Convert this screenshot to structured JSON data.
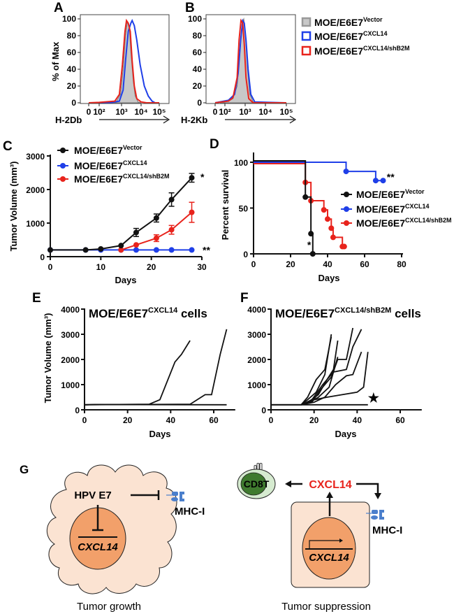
{
  "colors": {
    "vector": "#111111",
    "cxcl14": "#1f3fe8",
    "shb2m": "#e8231c",
    "vector_fill": "#c8c8c8",
    "cell": "#fbe3d2",
    "nucleus": "#f2a06a",
    "cd8_outer": "#d6ebd0",
    "cd8_inner": "#3f7a2f",
    "mhc": "#4b7fcc"
  },
  "legend": [
    {
      "base": "MOE/E6E7",
      "sup": "Vector"
    },
    {
      "base": "MOE/E6E7",
      "sup": "CXCL14"
    },
    {
      "base": "MOE/E6E7",
      "sup": "CXCL14/shB2M"
    }
  ],
  "chart_data": [
    {
      "panel": "A",
      "type": "area",
      "xlabel": "H-2Db",
      "ylabel": "% of Max",
      "xscale": "biexponential",
      "xticks": [
        {
          "value": 0,
          "label": "0"
        },
        {
          "value": 100,
          "label": "10²"
        },
        {
          "value": 1000,
          "label": "10³"
        },
        {
          "value": 10000,
          "label": "10⁴"
        },
        {
          "value": 100000,
          "label": "10⁵"
        }
      ],
      "yticks": [
        0,
        20,
        40,
        60,
        80,
        100
      ],
      "ylim": [
        0,
        105
      ],
      "series": [
        {
          "legend_index": 0,
          "style": "filled",
          "points": [
            [
              100,
              0
            ],
            [
              600,
              2
            ],
            [
              900,
              10
            ],
            [
              1200,
              40
            ],
            [
              1600,
              80
            ],
            [
              2000,
              97
            ],
            [
              2500,
              90
            ],
            [
              3000,
              60
            ],
            [
              4000,
              25
            ],
            [
              5000,
              8
            ],
            [
              7000,
              1
            ],
            [
              10000,
              0
            ]
          ]
        },
        {
          "legend_index": 1,
          "style": "line",
          "points": [
            [
              0,
              0
            ],
            [
              300,
              0
            ],
            [
              800,
              2
            ],
            [
              1200,
              15
            ],
            [
              1600,
              50
            ],
            [
              2200,
              85
            ],
            [
              3000,
              95
            ],
            [
              3500,
              98
            ],
            [
              4500,
              92
            ],
            [
              6000,
              75
            ],
            [
              9000,
              45
            ],
            [
              15000,
              20
            ],
            [
              25000,
              8
            ],
            [
              40000,
              2
            ],
            [
              60000,
              0
            ],
            [
              100000,
              0
            ]
          ]
        },
        {
          "legend_index": 2,
          "style": "line",
          "points": [
            [
              0,
              0
            ],
            [
              100,
              0.5
            ],
            [
              500,
              2
            ],
            [
              800,
              10
            ],
            [
              1100,
              45
            ],
            [
              1500,
              85
            ],
            [
              1800,
              98
            ],
            [
              2200,
              95
            ],
            [
              2800,
              85
            ],
            [
              3500,
              50
            ],
            [
              4500,
              20
            ],
            [
              6000,
              5
            ],
            [
              10000,
              1
            ],
            [
              20000,
              0
            ],
            [
              100000,
              0
            ]
          ]
        }
      ]
    },
    {
      "panel": "B",
      "type": "area",
      "xlabel": "H-2Kb",
      "ylabel": "",
      "xscale": "biexponential",
      "xticks": [
        {
          "value": 0,
          "label": "0"
        },
        {
          "value": 100,
          "label": "10²"
        },
        {
          "value": 1000,
          "label": "10³"
        },
        {
          "value": 10000,
          "label": "10⁴"
        },
        {
          "value": 100000,
          "label": "10⁵"
        }
      ],
      "yticks": [
        0,
        20,
        40,
        60,
        80,
        100
      ],
      "ylim": [
        0,
        105
      ],
      "series": [
        {
          "legend_index": 0,
          "style": "filled",
          "points": [
            [
              50,
              0
            ],
            [
              150,
              2
            ],
            [
              250,
              5
            ],
            [
              400,
              20
            ],
            [
              550,
              60
            ],
            [
              700,
              95
            ],
            [
              850,
              100
            ],
            [
              1000,
              85
            ],
            [
              1300,
              40
            ],
            [
              1700,
              10
            ],
            [
              2500,
              1
            ],
            [
              4000,
              0
            ]
          ]
        },
        {
          "legend_index": 1,
          "style": "line",
          "points": [
            [
              0,
              0
            ],
            [
              150,
              3
            ],
            [
              300,
              10
            ],
            [
              450,
              35
            ],
            [
              600,
              75
            ],
            [
              750,
              98
            ],
            [
              900,
              95
            ],
            [
              1100,
              75
            ],
            [
              1400,
              40
            ],
            [
              1900,
              10
            ],
            [
              3000,
              1
            ],
            [
              100000,
              0
            ]
          ]
        },
        {
          "legend_index": 2,
          "style": "line",
          "points": [
            [
              0,
              0
            ],
            [
              150,
              2
            ],
            [
              250,
              6
            ],
            [
              400,
              30
            ],
            [
              500,
              75
            ],
            [
              620,
              98
            ],
            [
              750,
              95
            ],
            [
              900,
              70
            ],
            [
              1100,
              30
            ],
            [
              1500,
              5
            ],
            [
              2500,
              0
            ],
            [
              100000,
              0
            ]
          ]
        }
      ]
    },
    {
      "panel": "C",
      "type": "line",
      "xlabel": "Days",
      "ylabel": "Tumor Volume (mm³)",
      "xlim": [
        0,
        30
      ],
      "ylim": [
        0,
        3000
      ],
      "xticks": [
        0,
        10,
        20,
        30
      ],
      "yticks": [
        0,
        1000,
        2000,
        3000
      ],
      "series": [
        {
          "legend_index": 0,
          "x": [
            0,
            7,
            10,
            14,
            17,
            21,
            24,
            28
          ],
          "y": [
            200,
            200,
            230,
            330,
            720,
            1150,
            1700,
            2350
          ],
          "err": [
            0,
            0,
            0,
            0,
            120,
            120,
            200,
            130
          ],
          "annotation": "*"
        },
        {
          "legend_index": 1,
          "x": [
            0,
            7,
            10,
            14,
            17,
            21,
            24,
            28
          ],
          "y": [
            200,
            200,
            200,
            200,
            200,
            200,
            200,
            200
          ],
          "err": [
            0,
            0,
            0,
            0,
            0,
            0,
            0,
            0
          ],
          "annotation": "**"
        },
        {
          "legend_index": 2,
          "x": [
            14,
            17,
            21,
            24,
            28
          ],
          "y": [
            200,
            350,
            550,
            800,
            1320
          ],
          "err": [
            0,
            0,
            100,
            130,
            300
          ],
          "annotation": ""
        }
      ]
    },
    {
      "panel": "D",
      "type": "line",
      "subtype": "survival-step",
      "xlabel": "Days",
      "ylabel": "Percent survival",
      "xlim": [
        0,
        80
      ],
      "ylim": [
        0,
        110
      ],
      "xticks": [
        0,
        20,
        40,
        60,
        80
      ],
      "yticks": [
        0,
        50,
        100
      ],
      "series": [
        {
          "legend_index": 0,
          "steps": [
            [
              0,
              100
            ],
            [
              28,
              62
            ],
            [
              31,
              22
            ],
            [
              32,
              0
            ]
          ],
          "end": 32,
          "annotation": "*",
          "annotation_at": [
            29,
            10
          ]
        },
        {
          "legend_index": 1,
          "steps": [
            [
              0,
              100
            ],
            [
              50,
              90
            ],
            [
              66,
              80
            ]
          ],
          "end": 70,
          "markers_at_end": true,
          "annotation": "**",
          "annotation_at": [
            72,
            84
          ]
        },
        {
          "legend_index": 2,
          "steps": [
            [
              0,
              100
            ],
            [
              28,
              78
            ],
            [
              31,
              58
            ],
            [
              38,
              48
            ],
            [
              40,
              38
            ],
            [
              42,
              28
            ],
            [
              43,
              18
            ],
            [
              48,
              8
            ]
          ],
          "end": 49,
          "markers_at_end": true,
          "annotation": ""
        }
      ]
    },
    {
      "panel": "E",
      "type": "line",
      "title_base": "MOE/E6E7",
      "title_sup": "CXCL14",
      "title_tail": " cells",
      "xlabel": "Days",
      "ylabel": "Tumor Volume (mm³)",
      "xlim": [
        0,
        70
      ],
      "ylim": [
        0,
        4000
      ],
      "xticks": [
        0,
        20,
        40,
        60
      ],
      "yticks": [
        0,
        1000,
        2000,
        3000,
        4000
      ],
      "series": [
        {
          "x": [
            0,
            30,
            35,
            42,
            45,
            49
          ],
          "y": [
            200,
            220,
            400,
            1900,
            2200,
            2750
          ]
        },
        {
          "x": [
            0,
            49,
            56,
            59,
            63,
            66
          ],
          "y": [
            200,
            220,
            600,
            600,
            2200,
            3200
          ]
        },
        {
          "x": [
            0,
            5,
            66
          ],
          "y": [
            200,
            210,
            200
          ]
        }
      ]
    },
    {
      "panel": "F",
      "type": "line",
      "title_base": "MOE/E6E7",
      "title_sup": "CXCL14/shB2M",
      "title_tail": " cells",
      "xlabel": "Days",
      "ylabel": "",
      "xlim": [
        0,
        70
      ],
      "ylim": [
        0,
        4000
      ],
      "xticks": [
        0,
        20,
        40,
        60
      ],
      "yticks": [
        0,
        1000,
        2000,
        3000,
        4000
      ],
      "marker_annotation": {
        "symbol": "★",
        "at": [
          45,
          500
        ]
      },
      "series": [
        {
          "x": [
            0,
            14,
            17,
            21,
            25,
            28
          ],
          "y": [
            200,
            200,
            500,
            1200,
            1600,
            2900
          ]
        },
        {
          "x": [
            14,
            17,
            21,
            25,
            28
          ],
          "y": [
            200,
            400,
            700,
            1400,
            3000
          ]
        },
        {
          "x": [
            14,
            18,
            22,
            27,
            31
          ],
          "y": [
            200,
            300,
            500,
            900,
            2100
          ]
        },
        {
          "x": [
            14,
            18,
            22,
            26,
            29,
            31
          ],
          "y": [
            200,
            350,
            600,
            1200,
            1600,
            2750
          ]
        },
        {
          "x": [
            14,
            19,
            23,
            28,
            31,
            35,
            38
          ],
          "y": [
            200,
            300,
            800,
            1300,
            2000,
            2000,
            3250
          ]
        },
        {
          "x": [
            14,
            19,
            24,
            29,
            35,
            38,
            42
          ],
          "y": [
            200,
            400,
            1000,
            1500,
            1600,
            2500,
            3200
          ]
        },
        {
          "x": [
            14,
            20,
            25,
            30,
            35,
            38,
            42
          ],
          "y": [
            200,
            300,
            500,
            1000,
            1350,
            1400,
            2300
          ]
        },
        {
          "x": [
            14,
            20,
            26,
            33,
            40,
            43,
            45
          ],
          "y": [
            200,
            400,
            500,
            600,
            700,
            900,
            2300
          ]
        },
        {
          "x": [
            0,
            45
          ],
          "y": [
            200,
            200
          ]
        }
      ]
    }
  ],
  "diagram": {
    "panel": "G",
    "left": {
      "protein": "HPV E7",
      "gene": "CXCL14",
      "receptor": "MHC-I",
      "caption": "Tumor growth"
    },
    "right": {
      "cell": "CD8T",
      "chemokine": "CXCL14",
      "gene": "CXCL14",
      "receptor": "MHC-I",
      "caption": "Tumor suppression"
    }
  }
}
